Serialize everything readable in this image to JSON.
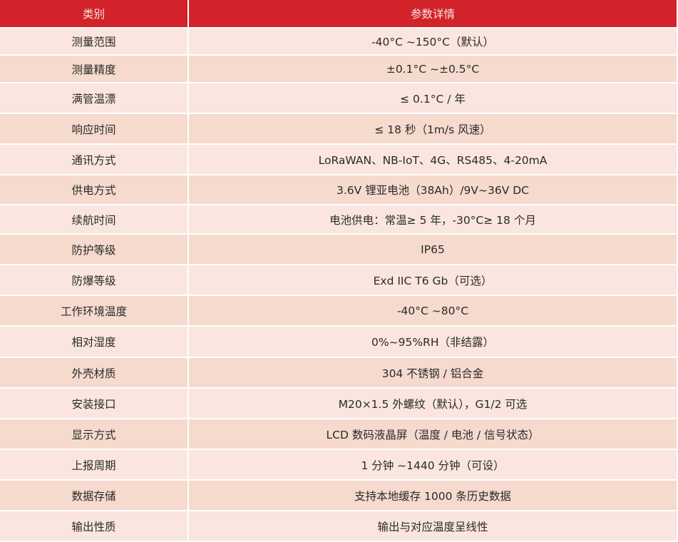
{
  "colors": {
    "header": "#d2232a",
    "row_light": "#fae6de",
    "row_dark": "#f6dace"
  },
  "header": {
    "category": "类别",
    "details": "参数详情"
  },
  "rows": [
    {
      "label": "测量范围",
      "value": "-40°C ~150°C（默认）"
    },
    {
      "label": "测量精度",
      "value": "±0.1°C ~±0.5°C"
    },
    {
      "label": "满管温漂",
      "value": "≤ 0.1°C / 年"
    },
    {
      "label": "响应时间",
      "value": "≤ 18 秒（1m/s 风速）"
    },
    {
      "label": "通讯方式",
      "value": "LoRaWAN、NB-IoT、4G、RS485、4-20mA"
    },
    {
      "label": "供电方式",
      "value": "3.6V 锂亚电池（38Ah）/9V~36V DC"
    },
    {
      "label": "续航时间",
      "value": "电池供电：常温≥ 5 年，-30°C≥ 18 个月"
    },
    {
      "label": "防护等级",
      "value": "IP65"
    },
    {
      "label": "防爆等级",
      "value": "Exd IIC T6 Gb（可选）"
    },
    {
      "label": "工作环境温度",
      "value": "-40°C ~80°C"
    },
    {
      "label": "相对湿度",
      "value": "0%~95%RH（非结露）"
    },
    {
      "label": "外壳材质",
      "value": "304 不锈钢 / 铝合金"
    },
    {
      "label": "安装接口",
      "value": "M20×1.5 外螺纹（默认），G1/2 可选"
    },
    {
      "label": "显示方式",
      "value": "LCD 数码液晶屏（温度 / 电池 / 信号状态）"
    },
    {
      "label": "上报周期",
      "value": "1 分钟 ~1440 分钟（可设）"
    },
    {
      "label": "数据存储",
      "value": "支持本地缓存 1000 条历史数据"
    },
    {
      "label": "输出性质",
      "value": "输出与对应温度呈线性"
    }
  ]
}
